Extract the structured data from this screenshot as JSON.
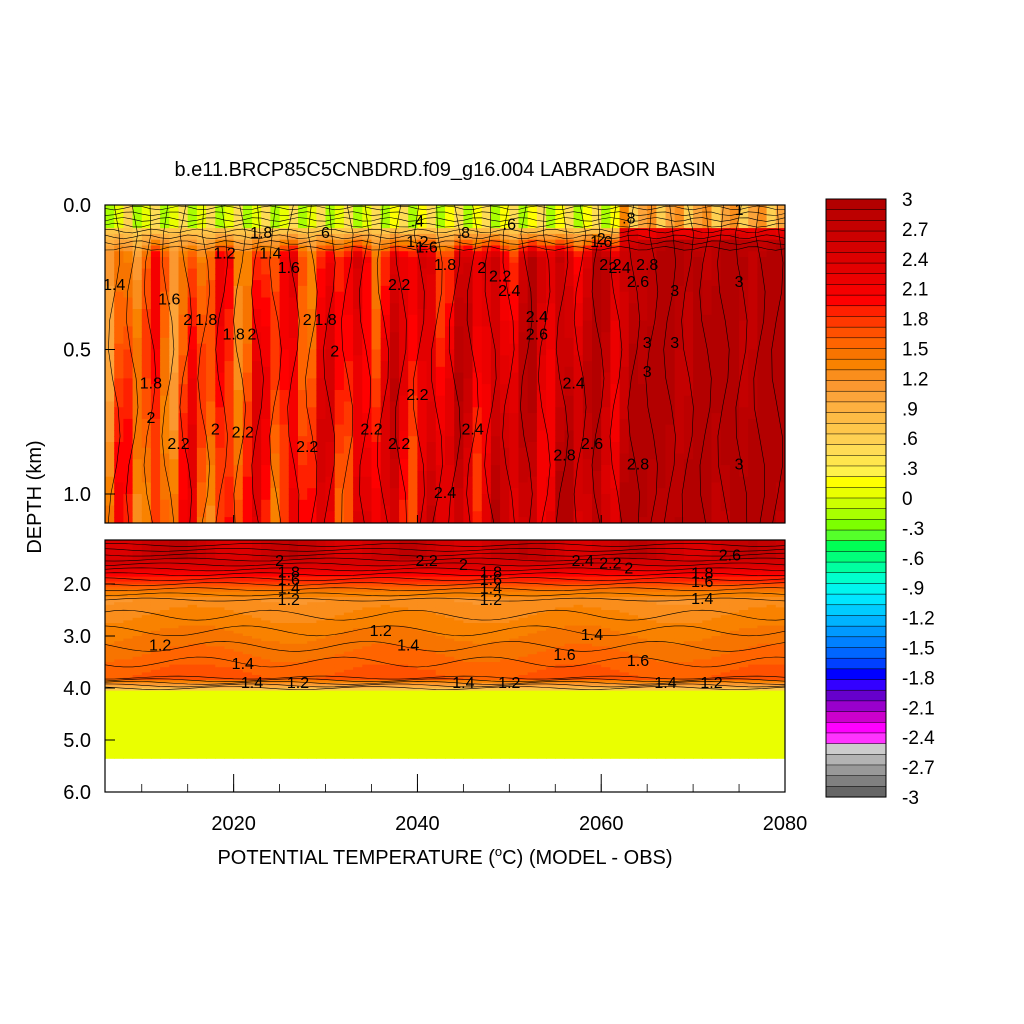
{
  "chart_data": {
    "type": "heatmap",
    "title": "b.e11.BRCP85C5CNBDRD.f09_g16.004 LABRADOR BASIN",
    "xlabel": "POTENTIAL TEMPERATURE (",
    "xlabel_sup": "o",
    "xlabel_tail": "C) (MODEL - OBS)",
    "ylabel": "DEPTH (km)",
    "x_range": [
      2006,
      2080
    ],
    "x_ticks": [
      "2020",
      "2040",
      "2060",
      "2080"
    ],
    "upper_panel": {
      "depth_range": [
        0.0,
        1.1
      ],
      "y_ticks": [
        "0.0",
        "0.5",
        "1.0"
      ]
    },
    "lower_panel": {
      "depth_range": [
        1.1,
        6.0
      ],
      "y_ticks": [
        "2.0",
        "3.0",
        "4.0",
        "5.0",
        "6.0"
      ]
    },
    "colorbar": {
      "labels": [
        "3",
        "2.7",
        "2.4",
        "2.1",
        "1.8",
        "1.5",
        "1.2",
        ".9",
        ".6",
        ".3",
        "0",
        "-.3",
        "-.6",
        "-.9",
        "-1.2",
        "-1.5",
        "-1.8",
        "-2.1",
        "-2.4",
        "-2.7",
        "-3"
      ],
      "colors": [
        "#b30000",
        "#bc0000",
        "#c40000",
        "#cc0000",
        "#d40000",
        "#dc0000",
        "#e30000",
        "#ec0000",
        "#f50000",
        "#ff0000",
        "#ff2000",
        "#ff3800",
        "#ff5000",
        "#ff6400",
        "#f77400",
        "#f98200",
        "#fa8e1c",
        "#fb9830",
        "#fca43a",
        "#fdb040",
        "#fdbb45",
        "#fec64a",
        "#fed052",
        "#ffdc55",
        "#ffe64d",
        "#fff24a",
        "#ffff00",
        "#eaff00",
        "#ccff00",
        "#a8ff00",
        "#7cff00",
        "#55ff2a",
        "#00ff55",
        "#00ff7a",
        "#00ffa0",
        "#00ffcc",
        "#00f5ee",
        "#00e6ff",
        "#00ccff",
        "#00b3ff",
        "#0099ff",
        "#0080ff",
        "#0066ff",
        "#0040ff",
        "#0000ff",
        "#3300ff",
        "#6600cc",
        "#9900cc",
        "#cc00cc",
        "#ff00ff",
        "#ff33ff",
        "#cccccc",
        "#b3b3b3",
        "#999999",
        "#808080",
        "#666666"
      ]
    },
    "contour_labels_upper": [
      {
        "t": "1",
        "x": 2075,
        "d": 0.02
      },
      {
        "t": "6",
        "x": 2030,
        "d": 0.1
      },
      {
        "t": ".4",
        "x": 2040,
        "d": 0.06
      },
      {
        "t": ".6",
        "x": 2050,
        "d": 0.07
      },
      {
        "t": ".8",
        "x": 2045,
        "d": 0.1
      },
      {
        "t": ".8",
        "x": 2063,
        "d": 0.05
      },
      {
        "t": "1.2",
        "x": 2019,
        "d": 0.17
      },
      {
        "t": "1.8",
        "x": 2023,
        "d": 0.1
      },
      {
        "t": "1.4",
        "x": 2024,
        "d": 0.17
      },
      {
        "t": "1.6",
        "x": 2026,
        "d": 0.22
      },
      {
        "t": "1.4",
        "x": 2007,
        "d": 0.28
      },
      {
        "t": "1.2",
        "x": 2040,
        "d": 0.13
      },
      {
        "t": "1.6",
        "x": 2041,
        "d": 0.15
      },
      {
        "t": "1.8",
        "x": 2043,
        "d": 0.21
      },
      {
        "t": "2",
        "x": 2047,
        "d": 0.22
      },
      {
        "t": "2.2",
        "x": 2049,
        "d": 0.25
      },
      {
        "t": "2.4",
        "x": 2050,
        "d": 0.3
      },
      {
        "t": "2",
        "x": 2060,
        "d": 0.12
      },
      {
        "t": "1.6",
        "x": 2060,
        "d": 0.13
      },
      {
        "t": "2.2",
        "x": 2061,
        "d": 0.21
      },
      {
        "t": "2.4",
        "x": 2062,
        "d": 0.22
      },
      {
        "t": "2.6",
        "x": 2064,
        "d": 0.27
      },
      {
        "t": "2.8",
        "x": 2065,
        "d": 0.21
      },
      {
        "t": "3",
        "x": 2068,
        "d": 0.3
      },
      {
        "t": "3",
        "x": 2075,
        "d": 0.27
      },
      {
        "t": "3",
        "x": 2065,
        "d": 0.48
      },
      {
        "t": "3",
        "x": 2068,
        "d": 0.48
      },
      {
        "t": "3",
        "x": 2065,
        "d": 0.58
      },
      {
        "t": "3",
        "x": 2075,
        "d": 0.9
      },
      {
        "t": "2.2",
        "x": 2038,
        "d": 0.28
      },
      {
        "t": "1.6",
        "x": 2013,
        "d": 0.33
      },
      {
        "t": "2",
        "x": 2015,
        "d": 0.4
      },
      {
        "t": "1.8",
        "x": 2017,
        "d": 0.4
      },
      {
        "t": "1.8",
        "x": 2020,
        "d": 0.45
      },
      {
        "t": "2",
        "x": 2022,
        "d": 0.45
      },
      {
        "t": "2",
        "x": 2028,
        "d": 0.4
      },
      {
        "t": "1.8",
        "x": 2030,
        "d": 0.4
      },
      {
        "t": "2",
        "x": 2031,
        "d": 0.51
      },
      {
        "t": "2.4",
        "x": 2053,
        "d": 0.39
      },
      {
        "t": "2.6",
        "x": 2053,
        "d": 0.45
      },
      {
        "t": "2.4",
        "x": 2057,
        "d": 0.62
      },
      {
        "t": "1.8",
        "x": 2011,
        "d": 0.62
      },
      {
        "t": "2",
        "x": 2011,
        "d": 0.74
      },
      {
        "t": "2",
        "x": 2018,
        "d": 0.78
      },
      {
        "t": "2.2",
        "x": 2021,
        "d": 0.79
      },
      {
        "t": "2.2",
        "x": 2014,
        "d": 0.83
      },
      {
        "t": "2.2",
        "x": 2035,
        "d": 0.78
      },
      {
        "t": "2.2",
        "x": 2028,
        "d": 0.84
      },
      {
        "t": "2.2",
        "x": 2040,
        "d": 0.66
      },
      {
        "t": "2.2",
        "x": 2038,
        "d": 0.83
      },
      {
        "t": "2.4",
        "x": 2046,
        "d": 0.78
      },
      {
        "t": "2.4",
        "x": 2043,
        "d": 1.0
      },
      {
        "t": "2.6",
        "x": 2059,
        "d": 0.83
      },
      {
        "t": "2.8",
        "x": 2056,
        "d": 0.87
      },
      {
        "t": "2.8",
        "x": 2064,
        "d": 0.9
      }
    ],
    "contour_labels_lower": [
      {
        "t": "2",
        "x": 2025,
        "d": 1.55
      },
      {
        "t": "1.8",
        "x": 2026,
        "d": 1.78
      },
      {
        "t": "1.6",
        "x": 2026,
        "d": 1.93
      },
      {
        "t": "1.4",
        "x": 2026,
        "d": 2.1
      },
      {
        "t": "1.2",
        "x": 2026,
        "d": 2.32
      },
      {
        "t": "2.2",
        "x": 2041,
        "d": 1.55
      },
      {
        "t": "2",
        "x": 2045,
        "d": 1.63
      },
      {
        "t": "1.8",
        "x": 2048,
        "d": 1.78
      },
      {
        "t": "1.6",
        "x": 2048,
        "d": 1.93
      },
      {
        "t": "1.4",
        "x": 2048,
        "d": 2.1
      },
      {
        "t": "1.2",
        "x": 2048,
        "d": 2.32
      },
      {
        "t": "2.4",
        "x": 2058,
        "d": 1.55
      },
      {
        "t": "2.2",
        "x": 2061,
        "d": 1.6
      },
      {
        "t": "2",
        "x": 2063,
        "d": 1.7
      },
      {
        "t": "2.6",
        "x": 2074,
        "d": 1.43
      },
      {
        "t": "1.8",
        "x": 2071,
        "d": 1.8
      },
      {
        "t": "1.6",
        "x": 2071,
        "d": 1.98
      },
      {
        "t": "1.4",
        "x": 2071,
        "d": 2.3
      },
      {
        "t": "1.2",
        "x": 2012,
        "d": 3.2
      },
      {
        "t": "1.4",
        "x": 2021,
        "d": 3.55
      },
      {
        "t": "1.2",
        "x": 2036,
        "d": 2.92
      },
      {
        "t": "1.4",
        "x": 2039,
        "d": 3.2
      },
      {
        "t": "1.4",
        "x": 2059,
        "d": 3.0
      },
      {
        "t": "1.6",
        "x": 2056,
        "d": 3.38
      },
      {
        "t": "1.6",
        "x": 2064,
        "d": 3.5
      },
      {
        "t": "1.4",
        "x": 2022,
        "d": 3.92
      },
      {
        "t": "1.2",
        "x": 2027,
        "d": 3.92
      },
      {
        "t": "1.4",
        "x": 2045,
        "d": 3.92
      },
      {
        "t": "1.2",
        "x": 2050,
        "d": 3.92
      },
      {
        "t": "1.4",
        "x": 2067,
        "d": 3.92
      },
      {
        "t": "1.2",
        "x": 2072,
        "d": 3.92
      }
    ]
  }
}
